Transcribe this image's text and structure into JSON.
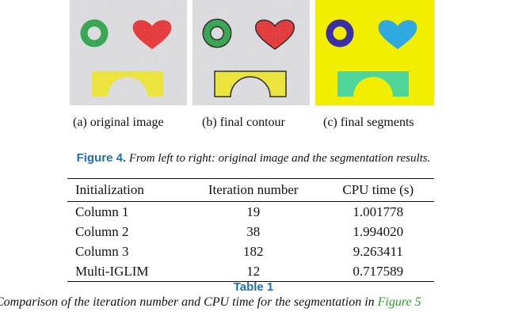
{
  "figure": {
    "subfigures": [
      {
        "caption": "(a) original image"
      },
      {
        "caption": "(b) final contour"
      },
      {
        "caption": "(c) final segments"
      }
    ],
    "label": "Figure 4.",
    "caption": "From left to right: original image and the segmentation results."
  },
  "table": {
    "header": [
      "Initialization",
      "Iteration number",
      "CPU time (s)"
    ],
    "rows": [
      [
        "Column 1",
        "19",
        "1.001778"
      ],
      [
        "Column 2",
        "38",
        "1.994020"
      ],
      [
        "Column 3",
        "182",
        "9.263411"
      ],
      [
        "Multi-IGLIM",
        "12",
        "0.717589"
      ]
    ],
    "label": "Table 1",
    "caption": "Comparison of the iteration number and CPU time for the segmentation in",
    "caption_ref": "Figure 5"
  }
}
